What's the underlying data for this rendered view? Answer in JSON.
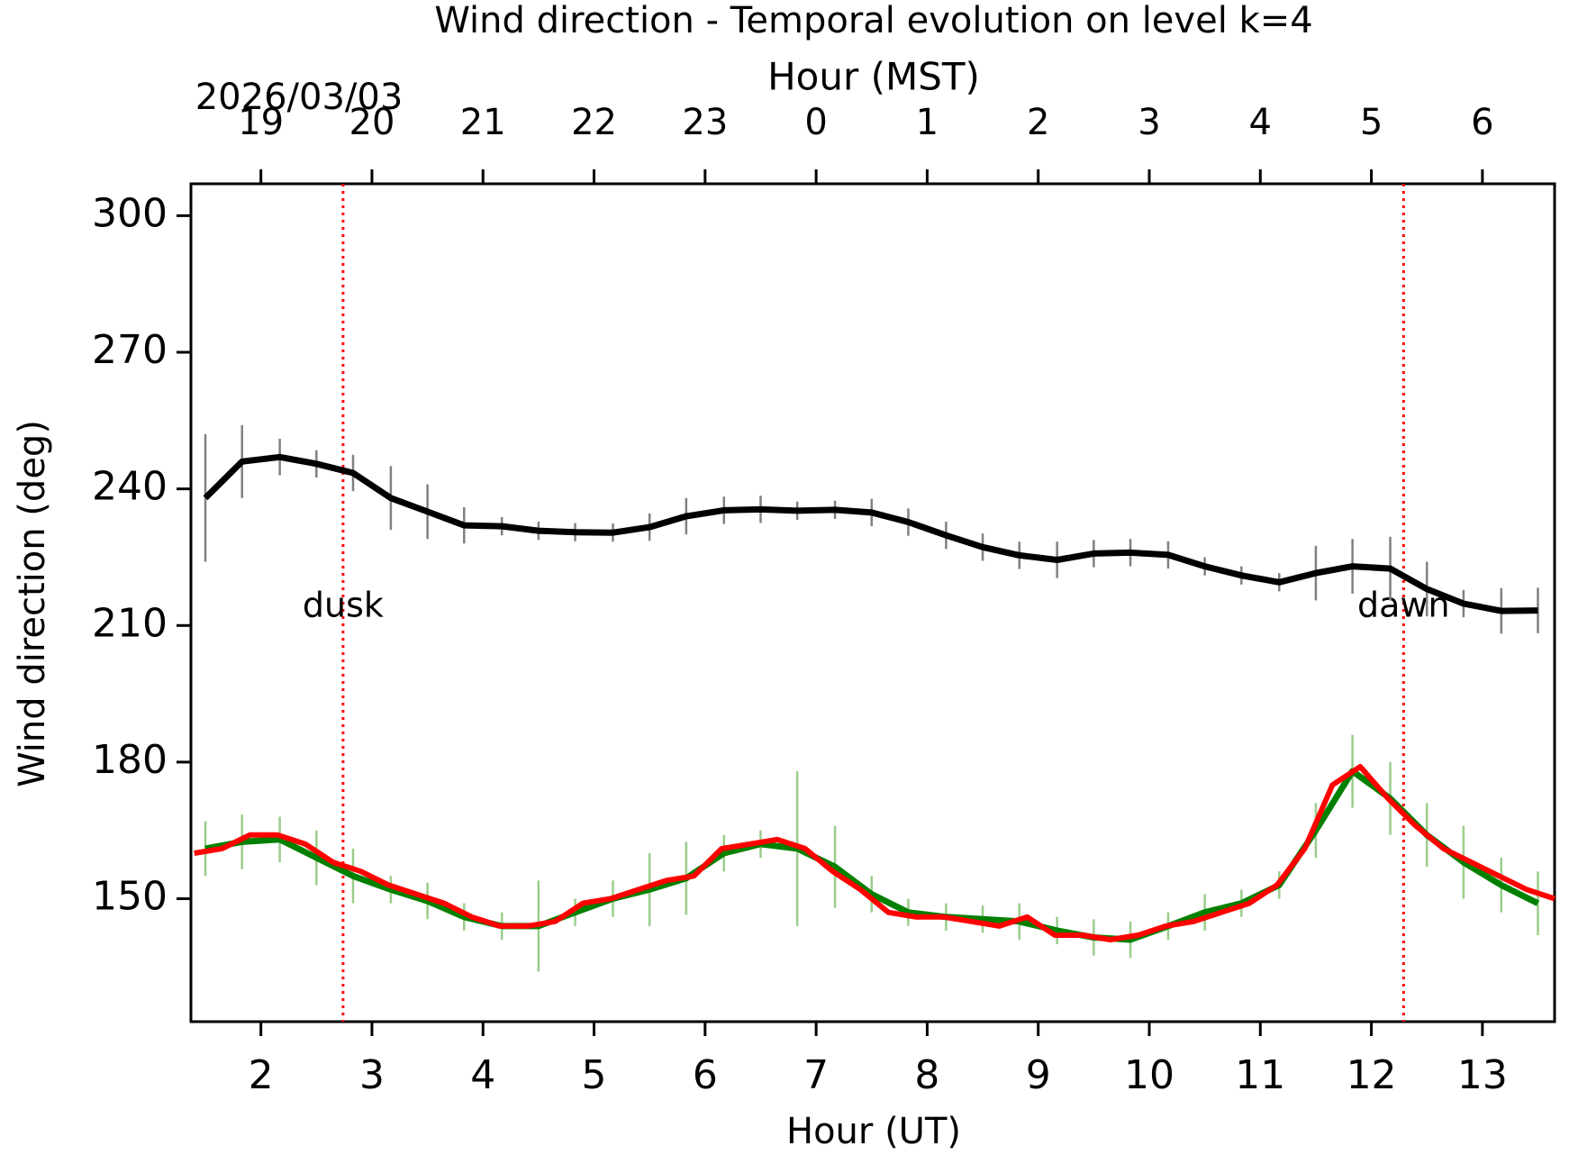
{
  "chart_data": {
    "type": "line",
    "title": "Wind direction - Temporal evolution on level k=4",
    "x2label": "Hour (MST)",
    "date": "2026/03/03",
    "xlabel": "Hour (UT)",
    "ylabel": "Wind direction (deg)",
    "xlim": [
      1.37,
      13.65
    ],
    "ylim": [
      123,
      307
    ],
    "xticks": [
      2,
      3,
      4,
      5,
      6,
      7,
      8,
      9,
      10,
      11,
      12,
      13
    ],
    "x2ticks": [
      {
        "value": 2,
        "label": "19"
      },
      {
        "value": 3,
        "label": "20"
      },
      {
        "value": 4,
        "label": "21"
      },
      {
        "value": 5,
        "label": "22"
      },
      {
        "value": 6,
        "label": "23"
      },
      {
        "value": 7,
        "label": "0"
      },
      {
        "value": 8,
        "label": "1"
      },
      {
        "value": 9,
        "label": "2"
      },
      {
        "value": 10,
        "label": "3"
      },
      {
        "value": 11,
        "label": "4"
      },
      {
        "value": 12,
        "label": "5"
      },
      {
        "value": 13,
        "label": "6"
      }
    ],
    "yticks": [
      150,
      180,
      210,
      240,
      270,
      300
    ],
    "grid": false,
    "annotations": [
      {
        "text": "dusk",
        "x": 2.74,
        "y": 214,
        "color": "#ff0000"
      },
      {
        "text": "dawn",
        "x": 12.29,
        "y": 214,
        "color": "#ff0000"
      }
    ],
    "series": [
      {
        "color": "#000000",
        "error_color": "#808080",
        "width": 7,
        "x": [
          1.5,
          1.83,
          2.17,
          2.5,
          2.83,
          3.17,
          3.5,
          3.83,
          4.17,
          4.5,
          4.83,
          5.17,
          5.5,
          5.83,
          6.17,
          6.5,
          6.83,
          7.17,
          7.5,
          7.83,
          8.17,
          8.5,
          8.83,
          9.17,
          9.5,
          9.83,
          10.17,
          10.5,
          10.83,
          11.17,
          11.5,
          11.83,
          12.17,
          12.5,
          12.83,
          13.17,
          13.5
        ],
        "values": [
          238,
          246,
          247,
          245.5,
          243.5,
          238,
          235,
          232,
          231.8,
          230.8,
          230.5,
          230.4,
          231.6,
          234,
          235.3,
          235.5,
          235.2,
          235.4,
          234.8,
          232.7,
          229.8,
          227.2,
          225.4,
          224.4,
          225.8,
          226,
          225.5,
          223,
          221,
          219.5,
          221.5,
          223,
          222.5,
          218,
          214.8,
          213.2,
          213.3
        ],
        "errors": [
          14,
          8,
          4,
          3,
          4,
          7,
          6,
          4,
          2,
          2,
          2,
          2,
          3,
          4,
          3,
          3,
          2,
          2,
          3,
          3,
          3,
          3,
          3,
          4,
          3,
          3,
          3,
          2,
          2,
          2,
          6,
          6,
          7,
          6,
          3,
          5,
          5
        ]
      },
      {
        "color": "#008000",
        "error_color": "#9acd8a",
        "width": 7,
        "x": [
          1.5,
          1.83,
          2.17,
          2.5,
          2.83,
          3.17,
          3.5,
          3.83,
          4.17,
          4.5,
          4.83,
          5.17,
          5.5,
          5.83,
          6.17,
          6.5,
          6.83,
          7.17,
          7.5,
          7.83,
          8.17,
          8.5,
          8.83,
          9.17,
          9.5,
          9.83,
          10.17,
          10.5,
          10.83,
          11.17,
          11.5,
          11.83,
          12.17,
          12.5,
          12.83,
          13.17,
          13.5
        ],
        "values": [
          161,
          162.5,
          163,
          159,
          155,
          152,
          149.5,
          146,
          144,
          144,
          147,
          150,
          152,
          154.5,
          160,
          162,
          161,
          157,
          151,
          147,
          146,
          145.5,
          145,
          143,
          141.5,
          141,
          144,
          147,
          149,
          153,
          165,
          178,
          172,
          164,
          158,
          153,
          149
        ],
        "errors": [
          6,
          6,
          5,
          6,
          6,
          3,
          4,
          3,
          3,
          10,
          3,
          4,
          8,
          8,
          4,
          3,
          17,
          9,
          4,
          3,
          3,
          3,
          4,
          3,
          4,
          4,
          3,
          4,
          3,
          3,
          6,
          8,
          8,
          7,
          8,
          6,
          7
        ]
      },
      {
        "color": "#ff0000",
        "width": 6,
        "x": [
          1.4,
          1.65,
          1.9,
          2.15,
          2.4,
          2.65,
          2.9,
          3.15,
          3.4,
          3.65,
          3.9,
          4.15,
          4.4,
          4.65,
          4.9,
          5.15,
          5.4,
          5.65,
          5.9,
          6.15,
          6.4,
          6.65,
          6.9,
          7.15,
          7.4,
          7.65,
          7.9,
          8.15,
          8.4,
          8.65,
          8.9,
          9.15,
          9.4,
          9.65,
          9.9,
          10.15,
          10.4,
          10.65,
          10.9,
          11.15,
          11.4,
          11.65,
          11.9,
          12.15,
          12.4,
          12.65,
          12.9,
          13.15,
          13.4,
          13.65
        ],
        "values": [
          160,
          161,
          164,
          164,
          162,
          158,
          156,
          153,
          151,
          149,
          146,
          144,
          144,
          145,
          149,
          150,
          152,
          154,
          155,
          161,
          162,
          163,
          161,
          156,
          152,
          147,
          146,
          146,
          145,
          144,
          146,
          142,
          142,
          141,
          142,
          144,
          145,
          147,
          149,
          153,
          161,
          175,
          179,
          172,
          166,
          161,
          158,
          155,
          152,
          150
        ]
      }
    ]
  }
}
